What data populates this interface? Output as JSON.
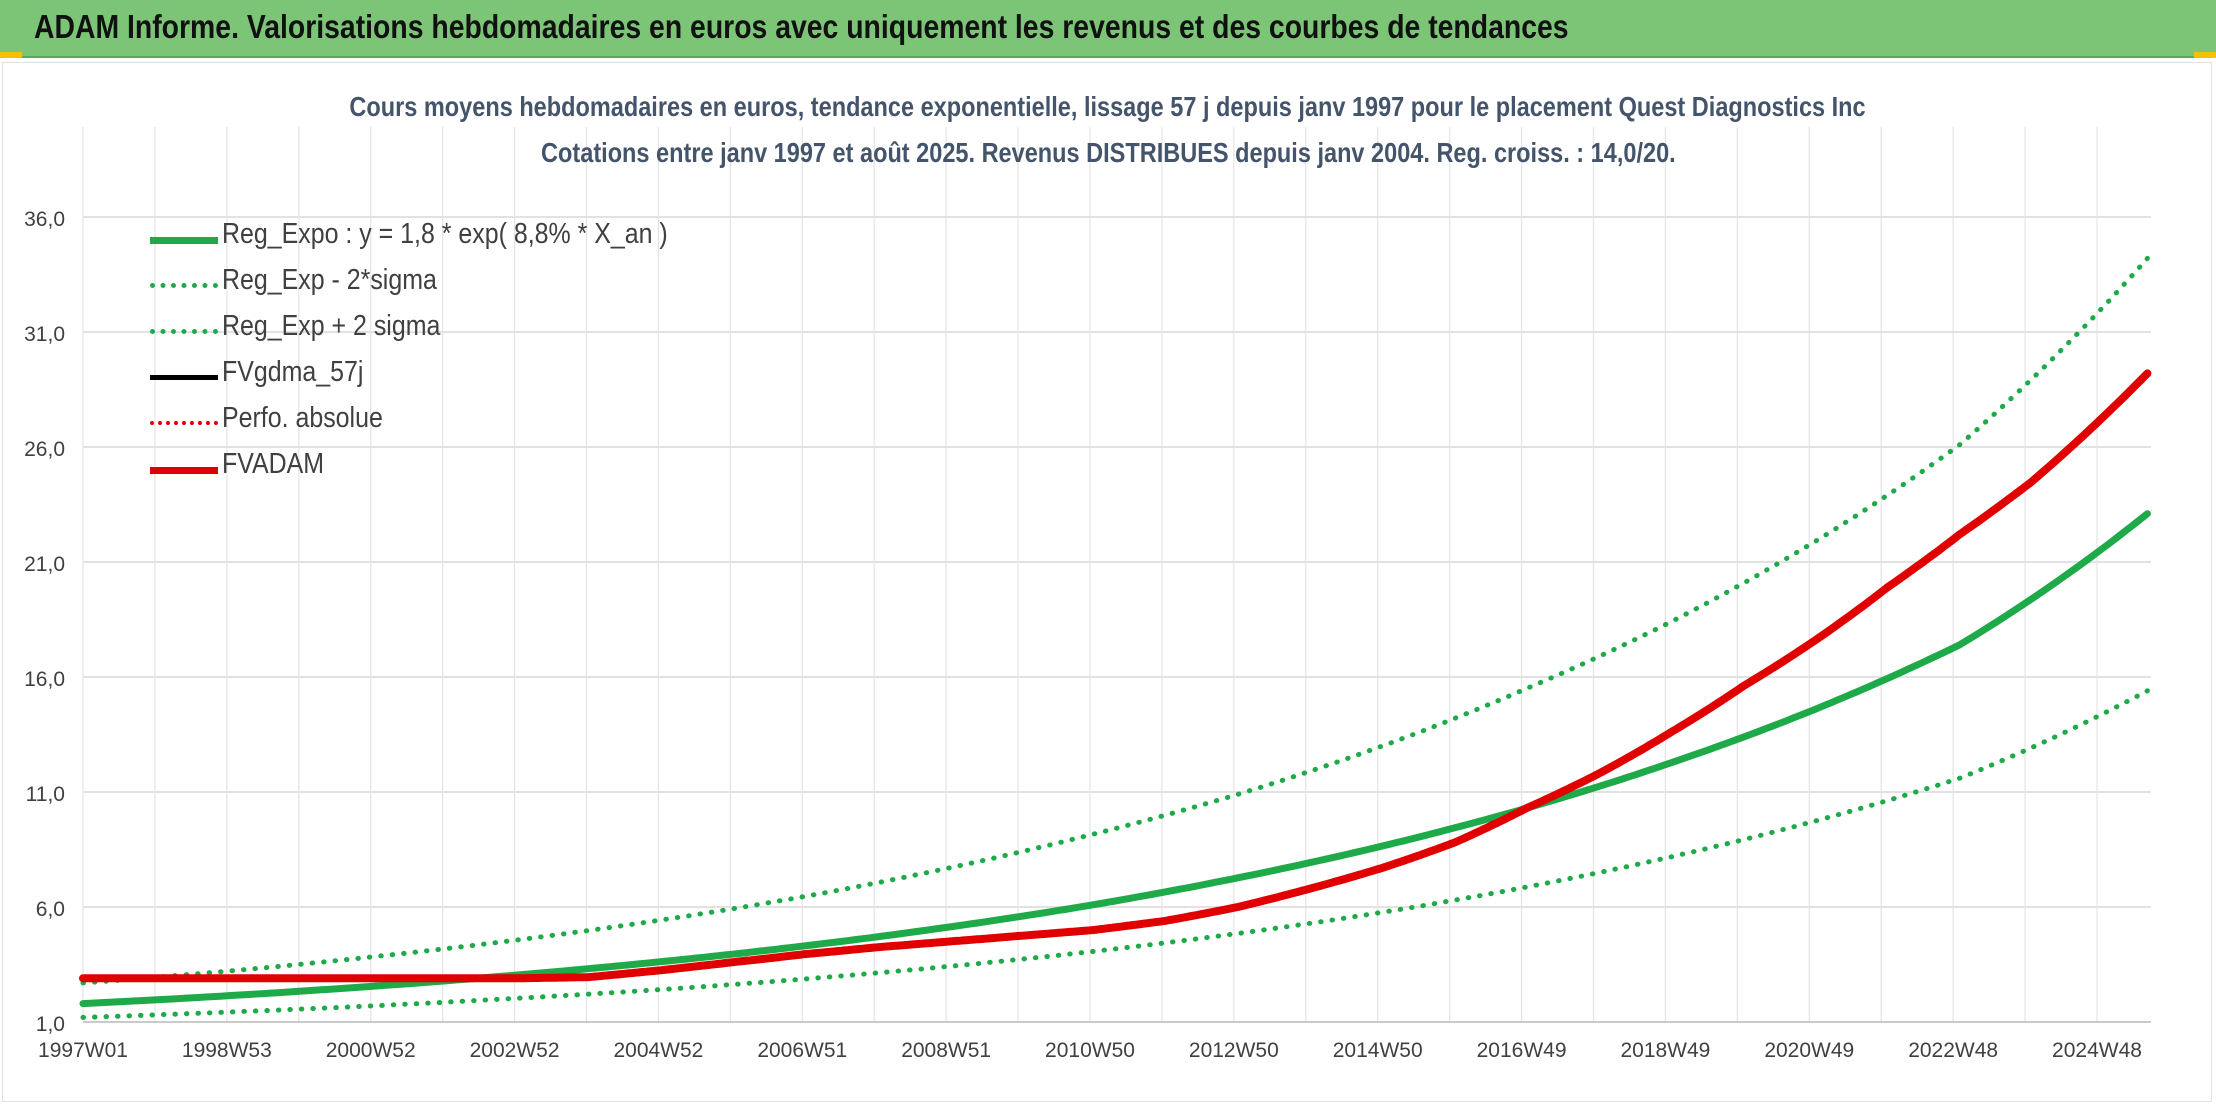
{
  "banner": {
    "title": "ADAM Informe. Valorisations hebdomadaires en euros avec uniquement les revenus et des courbes de tendances"
  },
  "chart_data": {
    "type": "line",
    "title": "Cours moyens hebdomadaires en euros, tendance exponentielle, lissage 57 j depuis janv 1997 pour le placement Quest Diagnostics Inc",
    "subtitle": "Cotations entre janv 1997 et août 2025. Revenus DISTRIBUES depuis janv 2004. Reg. croiss. : 14,0/20.",
    "xlabel": "",
    "ylabel": "",
    "x_tick_labels": [
      "1997W01",
      "1998W53",
      "2000W52",
      "2002W52",
      "2004W52",
      "2006W51",
      "2008W51",
      "2010W50",
      "2012W50",
      "2014W50",
      "2016W49",
      "2018W49",
      "2020W49",
      "2022W48",
      "2024W48"
    ],
    "x_range": [
      "1997W01",
      "2025W35"
    ],
    "ylim": [
      1.0,
      36.0
    ],
    "y_ticks": [
      1.0,
      6.0,
      11.0,
      16.0,
      21.0,
      26.0,
      31.0,
      36.0
    ],
    "y_tick_labels": [
      "1,0",
      "6,0",
      "11,0",
      "16,0",
      "21,0",
      "26,0",
      "31,0",
      "36,0"
    ],
    "grid": true,
    "legend_position": "top-left",
    "series": [
      {
        "name": "Reg_Expo : y = 1,8 * exp( 8,8% *  X_an )",
        "color": "#1faa4a",
        "style": "solid",
        "x": [
          1997.0,
          1999.0,
          2001.0,
          2003.0,
          2005.0,
          2007.0,
          2009.0,
          2011.0,
          2013.0,
          2015.0,
          2017.0,
          2019.0,
          2021.0,
          2023.0,
          2025.6
        ],
        "y": [
          1.8,
          2.14,
          2.55,
          3.04,
          3.62,
          4.31,
          5.13,
          6.1,
          7.27,
          8.65,
          10.3,
          12.27,
          14.6,
          17.4,
          23.1
        ]
      },
      {
        "name": "Reg_Exp - 2*sigma",
        "color": "#1faa4a",
        "style": "dotted",
        "x": [
          1997.0,
          1999.0,
          2001.0,
          2003.0,
          2005.0,
          2007.0,
          2009.0,
          2011.0,
          2013.0,
          2015.0,
          2017.0,
          2019.0,
          2021.0,
          2023.0,
          2025.6
        ],
        "y": [
          1.2,
          1.43,
          1.7,
          2.03,
          2.41,
          2.87,
          3.42,
          4.07,
          4.85,
          5.77,
          6.87,
          8.18,
          9.74,
          11.6,
          15.4
        ]
      },
      {
        "name": "Reg_Exp + 2 sigma",
        "color": "#1faa4a",
        "style": "dotted",
        "x": [
          1997.0,
          1999.0,
          2001.0,
          2003.0,
          2005.0,
          2007.0,
          2009.0,
          2011.0,
          2013.0,
          2015.0,
          2017.0,
          2019.0,
          2021.0,
          2023.0,
          2025.6
        ],
        "y": [
          2.7,
          3.21,
          3.83,
          4.56,
          5.43,
          6.46,
          7.7,
          9.17,
          10.9,
          13.0,
          15.5,
          18.4,
          21.9,
          26.1,
          34.2
        ]
      },
      {
        "name": "FVgdma_57j",
        "color": "#000000",
        "style": "solid",
        "x": [],
        "y": []
      },
      {
        "name": "Perfo. absolue",
        "color": "#e00000",
        "style": "dotted",
        "x": [],
        "y": []
      },
      {
        "name": "FVADAM",
        "color": "#e00000",
        "style": "solid",
        "x": [
          1997.0,
          2000.0,
          2003.0,
          2004.0,
          2005.0,
          2006.0,
          2007.0,
          2008.0,
          2009.0,
          2010.0,
          2011.0,
          2012.0,
          2013.0,
          2014.0,
          2015.0,
          2016.0,
          2017.0,
          2018.0,
          2019.0,
          2020.0,
          2021.0,
          2022.0,
          2023.0,
          2024.0,
          2025.6
        ],
        "y": [
          2.9,
          2.9,
          2.9,
          2.95,
          3.25,
          3.6,
          3.95,
          4.25,
          4.5,
          4.75,
          5.0,
          5.4,
          6.0,
          6.8,
          7.7,
          8.8,
          10.3,
          11.8,
          13.6,
          15.6,
          17.6,
          19.9,
          22.2,
          24.5,
          29.2
        ]
      }
    ]
  }
}
